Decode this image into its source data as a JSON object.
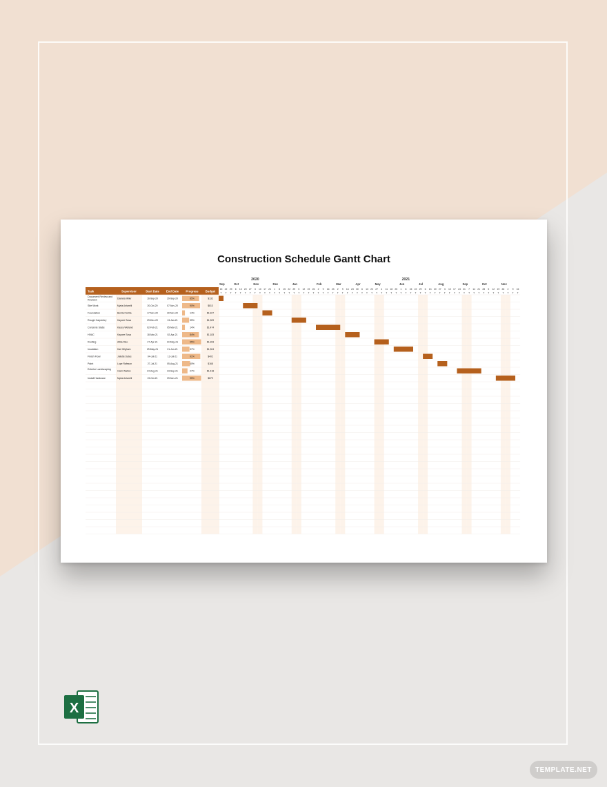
{
  "document": {
    "title": "Construction Schedule Gantt Chart",
    "accent_color": "#b5601d",
    "progress_color": "#eeb989",
    "stripe_color": "#fdf3ea",
    "app_icon": "excel-icon",
    "brand": "TEMPLATE.NET"
  },
  "table": {
    "headers": [
      "Task",
      "Supervisor",
      "Start Date",
      "End Date",
      "Progress",
      "Budget"
    ],
    "rows": [
      {
        "task": "Document Review and Revision",
        "supervisor": "Daniela Miller",
        "start": "16-Sep-20",
        "end": "29-Sep-20",
        "progress": "85%",
        "budget": "$132",
        "bar": [
          0,
          1.0
        ]
      },
      {
        "task": "Site Work",
        "supervisor": "Myria Antarelli",
        "start": "20-Oct-20",
        "end": "07-Nov-20",
        "progress": "90%",
        "budget": "$813",
        "bar": [
          5,
          8
        ]
      },
      {
        "task": "Foundation",
        "supervisor": "Benita Fiorilla",
        "start": "17-Nov-20",
        "end": "30-Nov-20",
        "progress": "14%",
        "budget": "$1,927",
        "bar": [
          9,
          11
        ]
      },
      {
        "task": "Rough Carpentry",
        "supervisor": "Kaycee Sosa",
        "start": "29-Dec-20",
        "end": "13-Jan-21",
        "progress": "35%",
        "budget": "$1,309",
        "bar": [
          15,
          18
        ]
      },
      {
        "task": "Concrete Slabs",
        "supervisor": "Kacey Welland",
        "start": "02-Feb-21",
        "end": "05-Mar-21",
        "progress": "14%",
        "budget": "$1,474",
        "bar": [
          20,
          25
        ]
      },
      {
        "task": "HVAC",
        "supervisor": "Kaycee Sosa",
        "start": "18-Mar-21",
        "end": "02-Apr-21",
        "progress": "84%",
        "budget": "$1,183",
        "bar": [
          26,
          29
        ]
      },
      {
        "task": "Roofing",
        "supervisor": "Attila Riso",
        "start": "27-Apr-21",
        "end": "10-May-21",
        "progress": "95%",
        "budget": "$1,263",
        "bar": [
          32,
          35
        ]
      },
      {
        "task": "Insulation",
        "supervisor": "Karl Wigham",
        "start": "29-May-21",
        "end": "21-Jun-21",
        "progress": "37%",
        "budget": "$1,304",
        "bar": [
          36,
          40
        ]
      },
      {
        "task": "Finish Floor",
        "supervisor": "Juliette Dates",
        "start": "04-Jul-21",
        "end": "13-Jul-21",
        "progress": "91%",
        "budget": "$402",
        "bar": [
          42,
          44
        ]
      },
      {
        "task": "Paint",
        "supervisor": "Lupe Rafeson",
        "start": "27-Jul-21",
        "end": "05-Aug-21",
        "progress": "40%",
        "budget": "$168",
        "bar": [
          45,
          47
        ]
      },
      {
        "task": "Exterior Landscaping",
        "supervisor": "Carin Walton",
        "start": "24-Aug-21",
        "end": "23-Sep-21",
        "progress": "27%",
        "budget": "$1,418",
        "bar": [
          49,
          54
        ]
      },
      {
        "task": "Install Hardware",
        "supervisor": "Myria Antarelli",
        "start": "19-Oct-21",
        "end": "09-Nov-21",
        "progress": "95%",
        "budget": "$879",
        "bar": [
          57,
          61
        ]
      }
    ]
  },
  "timeline": {
    "years": [
      {
        "label": "2020",
        "col": 7
      },
      {
        "label": "2021",
        "col": 38
      }
    ],
    "months": [
      {
        "label": "Sep",
        "col": 0
      },
      {
        "label": "Oct",
        "col": 3
      },
      {
        "label": "Nov",
        "col": 7
      },
      {
        "label": "Dec",
        "col": 11
      },
      {
        "label": "Jan",
        "col": 15
      },
      {
        "label": "Feb",
        "col": 20
      },
      {
        "label": "Mar",
        "col": 24
      },
      {
        "label": "Apr",
        "col": 28
      },
      {
        "label": "May",
        "col": 32
      },
      {
        "label": "Jun",
        "col": 37
      },
      {
        "label": "Jul",
        "col": 41
      },
      {
        "label": "Aug",
        "col": 45
      },
      {
        "label": "Sep",
        "col": 50
      },
      {
        "label": "Oct",
        "col": 54
      },
      {
        "label": "Nov",
        "col": 58
      }
    ],
    "days": [
      "15",
      "22",
      "29",
      "6",
      "13",
      "20",
      "27",
      "3",
      "10",
      "17",
      "24",
      "1",
      "8",
      "15",
      "22",
      "29",
      "5",
      "12",
      "19",
      "26",
      "2",
      "9",
      "16",
      "23",
      "2",
      "9",
      "16",
      "23",
      "30",
      "6",
      "13",
      "20",
      "27",
      "4",
      "11",
      "18",
      "25",
      "1",
      "8",
      "15",
      "22",
      "29",
      "6",
      "13",
      "20",
      "27",
      "3",
      "10",
      "17",
      "24",
      "31",
      "7",
      "14",
      "21",
      "28",
      "5",
      "12",
      "19",
      "26",
      "2",
      "9",
      "16"
    ],
    "day_initials": "T",
    "shaded_cols": [
      7,
      8,
      15,
      16,
      24,
      25,
      32,
      33,
      41,
      42,
      50,
      51,
      58,
      59
    ]
  }
}
